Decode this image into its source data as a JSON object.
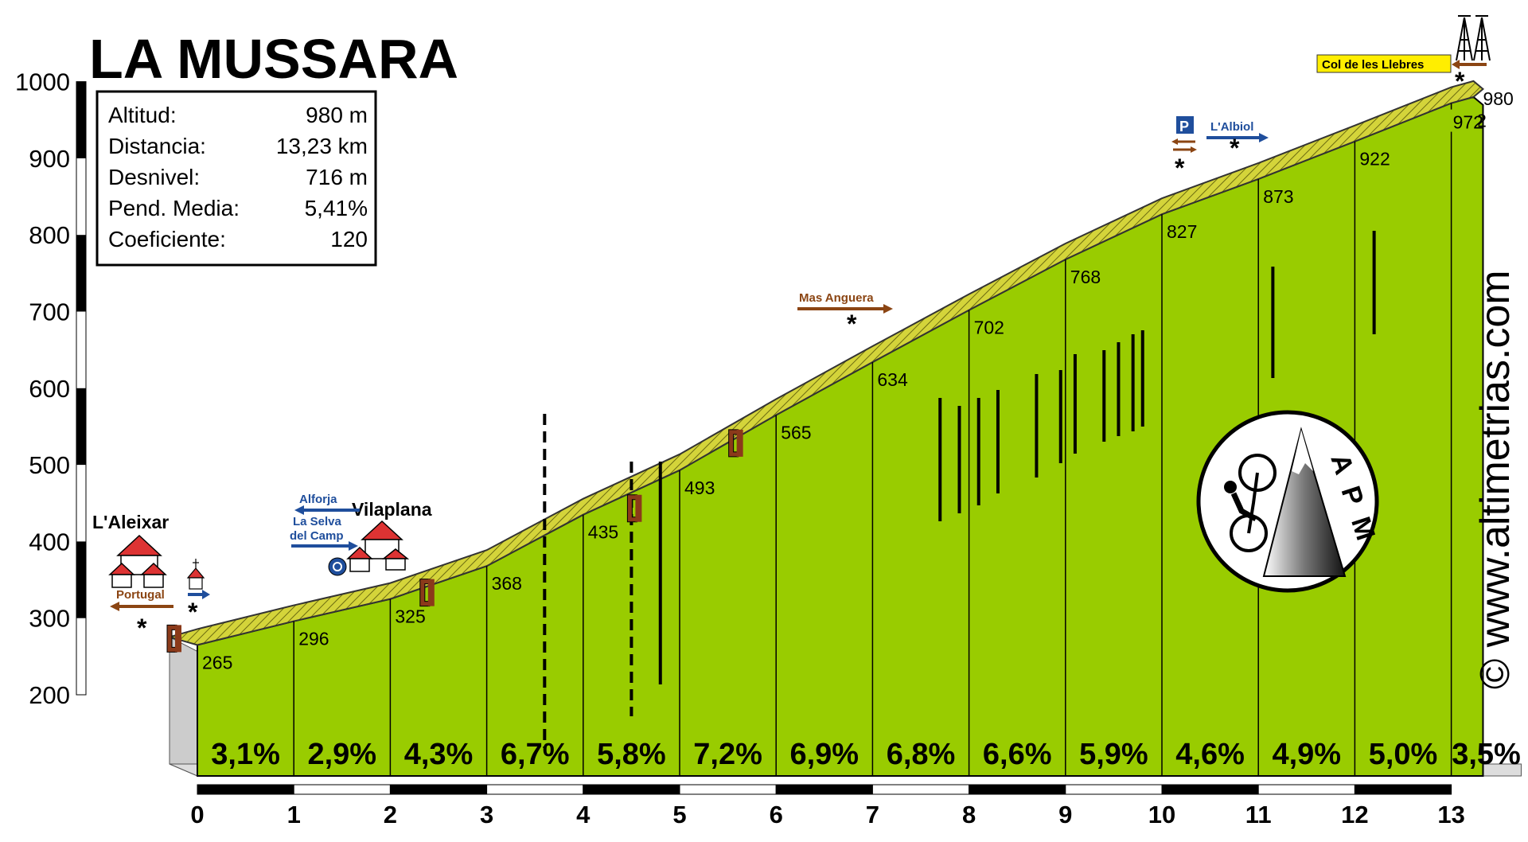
{
  "title": "LA MUSSARA",
  "stats": [
    {
      "label": "Altitud:",
      "value": "980 m"
    },
    {
      "label": "Distancia:",
      "value": "13,23 km"
    },
    {
      "label": "Desnivel:",
      "value": "716 m"
    },
    {
      "label": "Pend. Media:",
      "value": "5,41%"
    },
    {
      "label": "Coeficiente:",
      "value": "120"
    }
  ],
  "watermark": "© www.altimetrias.com",
  "logo_text": "APM",
  "colors": {
    "profile": "#99cc00",
    "road": "#cccc33",
    "road_dark": "#666600",
    "brown": "#8b4513",
    "blue": "#1f4e9c",
    "sign": "#ffee00",
    "base": "#cccccc"
  },
  "chart_data": {
    "type": "area",
    "title": "LA MUSSARA",
    "xlabel": "",
    "ylabel": "",
    "xlim": [
      0,
      13.23
    ],
    "ylim": [
      200,
      1000
    ],
    "xticks": [
      "0",
      "1",
      "2",
      "3",
      "4",
      "5",
      "6",
      "7",
      "8",
      "9",
      "10",
      "11",
      "12",
      "13"
    ],
    "yticks": [
      "200",
      "300",
      "400",
      "500",
      "600",
      "700",
      "800",
      "900",
      "1000"
    ],
    "profile": {
      "x": [
        0,
        1,
        2,
        3,
        4,
        5,
        6,
        7,
        8,
        9,
        10,
        11,
        12,
        13,
        13.23
      ],
      "y": [
        265,
        296,
        325,
        368,
        435,
        493,
        565,
        634,
        702,
        768,
        827,
        873,
        922,
        972,
        980
      ]
    },
    "km_labels": [
      "265",
      "296",
      "325",
      "368",
      "435",
      "493",
      "565",
      "634",
      "702",
      "768",
      "827",
      "873",
      "922",
      "972",
      "980"
    ],
    "gradients": [
      "3,1%",
      "2,9%",
      "4,3%",
      "6,7%",
      "5,8%",
      "7,2%",
      "6,9%",
      "6,8%",
      "6,6%",
      "5,9%",
      "4,6%",
      "4,9%",
      "5,0%",
      "3,5%"
    ],
    "places": [
      {
        "name": "L'Aleixar",
        "km": 0.0
      },
      {
        "name": "Vilaplana",
        "km": 2.3
      },
      {
        "name": "Mas Anguera",
        "km": 7.0
      },
      {
        "name": "Col de les Llebres",
        "km": 13.23
      }
    ],
    "signs": [
      {
        "text": "Portugal",
        "km": -0.3,
        "color": "brown"
      },
      {
        "text": "Alforja",
        "km": 1.6,
        "color": "blue"
      },
      {
        "text": "La Selva",
        "km": 1.6,
        "color": "blue"
      },
      {
        "text": "del Camp",
        "km": 1.6,
        "color": "blue"
      },
      {
        "text": "L'Albiol",
        "km": 10.9,
        "color": "blue"
      },
      {
        "text": "P",
        "km": 10.3,
        "color": "blue"
      }
    ]
  }
}
